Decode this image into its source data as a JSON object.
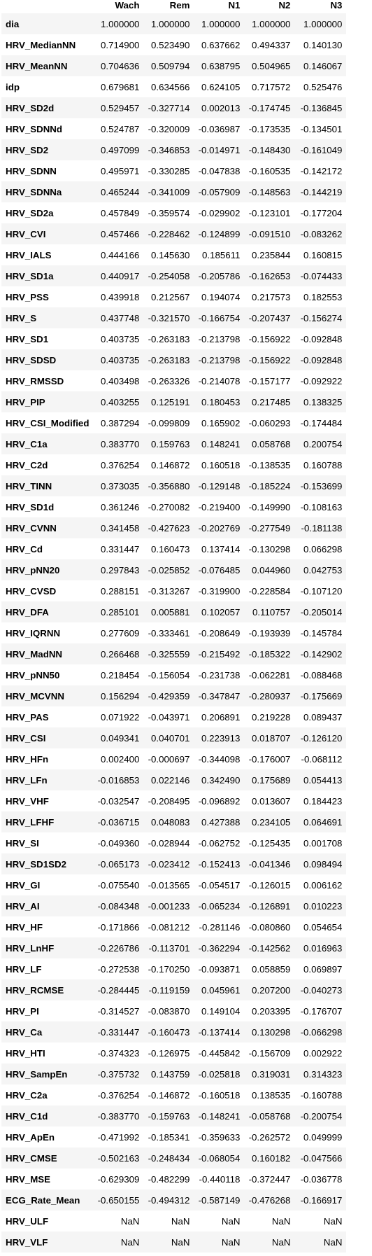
{
  "columns": [
    "Wach",
    "Rem",
    "N1",
    "N2",
    "N3"
  ],
  "rows": [
    {
      "index": "dia",
      "values": [
        "1.000000",
        "1.000000",
        "1.000000",
        "1.000000",
        "1.000000"
      ]
    },
    {
      "index": "HRV_MedianNN",
      "values": [
        "0.714900",
        "0.523490",
        "0.637662",
        "0.494337",
        "0.140130"
      ]
    },
    {
      "index": "HRV_MeanNN",
      "values": [
        "0.704636",
        "0.509794",
        "0.638795",
        "0.504965",
        "0.146067"
      ]
    },
    {
      "index": "idp",
      "values": [
        "0.679681",
        "0.634566",
        "0.624105",
        "0.717572",
        "0.525476"
      ]
    },
    {
      "index": "HRV_SD2d",
      "values": [
        "0.529457",
        "-0.327714",
        "0.002013",
        "-0.174745",
        "-0.136845"
      ]
    },
    {
      "index": "HRV_SDNNd",
      "values": [
        "0.524787",
        "-0.320009",
        "-0.036987",
        "-0.173535",
        "-0.134501"
      ]
    },
    {
      "index": "HRV_SD2",
      "values": [
        "0.497099",
        "-0.346853",
        "-0.014971",
        "-0.148430",
        "-0.161049"
      ]
    },
    {
      "index": "HRV_SDNN",
      "values": [
        "0.495971",
        "-0.330285",
        "-0.047838",
        "-0.160535",
        "-0.142172"
      ]
    },
    {
      "index": "HRV_SDNNa",
      "values": [
        "0.465244",
        "-0.341009",
        "-0.057909",
        "-0.148563",
        "-0.144219"
      ]
    },
    {
      "index": "HRV_SD2a",
      "values": [
        "0.457849",
        "-0.359574",
        "-0.029902",
        "-0.123101",
        "-0.177204"
      ]
    },
    {
      "index": "HRV_CVI",
      "values": [
        "0.457466",
        "-0.228462",
        "-0.124899",
        "-0.091510",
        "-0.083262"
      ]
    },
    {
      "index": "HRV_IALS",
      "values": [
        "0.444166",
        "0.145630",
        "0.185611",
        "0.235844",
        "0.160815"
      ]
    },
    {
      "index": "HRV_SD1a",
      "values": [
        "0.440917",
        "-0.254058",
        "-0.205786",
        "-0.162653",
        "-0.074433"
      ]
    },
    {
      "index": "HRV_PSS",
      "values": [
        "0.439918",
        "0.212567",
        "0.194074",
        "0.217573",
        "0.182553"
      ]
    },
    {
      "index": "HRV_S",
      "values": [
        "0.437748",
        "-0.321570",
        "-0.166754",
        "-0.207437",
        "-0.156274"
      ]
    },
    {
      "index": "HRV_SD1",
      "values": [
        "0.403735",
        "-0.263183",
        "-0.213798",
        "-0.156922",
        "-0.092848"
      ]
    },
    {
      "index": "HRV_SDSD",
      "values": [
        "0.403735",
        "-0.263183",
        "-0.213798",
        "-0.156922",
        "-0.092848"
      ]
    },
    {
      "index": "HRV_RMSSD",
      "values": [
        "0.403498",
        "-0.263326",
        "-0.214078",
        "-0.157177",
        "-0.092922"
      ]
    },
    {
      "index": "HRV_PIP",
      "values": [
        "0.403255",
        "0.125191",
        "0.180453",
        "0.217485",
        "0.138325"
      ]
    },
    {
      "index": "HRV_CSI_Modified",
      "values": [
        "0.387294",
        "-0.099809",
        "0.165902",
        "-0.060293",
        "-0.174484"
      ]
    },
    {
      "index": "HRV_C1a",
      "values": [
        "0.383770",
        "0.159763",
        "0.148241",
        "0.058768",
        "0.200754"
      ]
    },
    {
      "index": "HRV_C2d",
      "values": [
        "0.376254",
        "0.146872",
        "0.160518",
        "-0.138535",
        "0.160788"
      ]
    },
    {
      "index": "HRV_TINN",
      "values": [
        "0.373035",
        "-0.356880",
        "-0.129148",
        "-0.185224",
        "-0.153699"
      ]
    },
    {
      "index": "HRV_SD1d",
      "values": [
        "0.361246",
        "-0.270082",
        "-0.219400",
        "-0.149990",
        "-0.108163"
      ]
    },
    {
      "index": "HRV_CVNN",
      "values": [
        "0.341458",
        "-0.427623",
        "-0.202769",
        "-0.277549",
        "-0.181138"
      ]
    },
    {
      "index": "HRV_Cd",
      "values": [
        "0.331447",
        "0.160473",
        "0.137414",
        "-0.130298",
        "0.066298"
      ]
    },
    {
      "index": "HRV_pNN20",
      "values": [
        "0.297843",
        "-0.025852",
        "-0.076485",
        "0.044960",
        "0.042753"
      ]
    },
    {
      "index": "HRV_CVSD",
      "values": [
        "0.288151",
        "-0.313267",
        "-0.319900",
        "-0.228584",
        "-0.107120"
      ]
    },
    {
      "index": "HRV_DFA",
      "values": [
        "0.285101",
        "0.005881",
        "0.102057",
        "0.110757",
        "-0.205014"
      ]
    },
    {
      "index": "HRV_IQRNN",
      "values": [
        "0.277609",
        "-0.333461",
        "-0.208649",
        "-0.193939",
        "-0.145784"
      ]
    },
    {
      "index": "HRV_MadNN",
      "values": [
        "0.266468",
        "-0.325559",
        "-0.215492",
        "-0.185322",
        "-0.142902"
      ]
    },
    {
      "index": "HRV_pNN50",
      "values": [
        "0.218454",
        "-0.156054",
        "-0.231738",
        "-0.062281",
        "-0.088468"
      ]
    },
    {
      "index": "HRV_MCVNN",
      "values": [
        "0.156294",
        "-0.429359",
        "-0.347847",
        "-0.280937",
        "-0.175669"
      ]
    },
    {
      "index": "HRV_PAS",
      "values": [
        "0.071922",
        "-0.043971",
        "0.206891",
        "0.219228",
        "0.089437"
      ]
    },
    {
      "index": "HRV_CSI",
      "values": [
        "0.049341",
        "0.040701",
        "0.223913",
        "0.018707",
        "-0.126120"
      ]
    },
    {
      "index": "HRV_HFn",
      "values": [
        "0.002400",
        "-0.000697",
        "-0.344098",
        "-0.176007",
        "-0.068112"
      ]
    },
    {
      "index": "HRV_LFn",
      "values": [
        "-0.016853",
        "0.022146",
        "0.342490",
        "0.175689",
        "0.054413"
      ]
    },
    {
      "index": "HRV_VHF",
      "values": [
        "-0.032547",
        "-0.208495",
        "-0.096892",
        "0.013607",
        "0.184423"
      ]
    },
    {
      "index": "HRV_LFHF",
      "values": [
        "-0.036715",
        "0.048083",
        "0.427388",
        "0.234105",
        "0.064691"
      ]
    },
    {
      "index": "HRV_SI",
      "values": [
        "-0.049360",
        "-0.028944",
        "-0.062752",
        "-0.125435",
        "0.001708"
      ]
    },
    {
      "index": "HRV_SD1SD2",
      "values": [
        "-0.065173",
        "-0.023412",
        "-0.152413",
        "-0.041346",
        "0.098494"
      ]
    },
    {
      "index": "HRV_GI",
      "values": [
        "-0.075540",
        "-0.013565",
        "-0.054517",
        "-0.126015",
        "0.006162"
      ]
    },
    {
      "index": "HRV_AI",
      "values": [
        "-0.084348",
        "-0.001233",
        "-0.065234",
        "-0.126891",
        "0.010223"
      ]
    },
    {
      "index": "HRV_HF",
      "values": [
        "-0.171866",
        "-0.081212",
        "-0.281146",
        "-0.080860",
        "0.054654"
      ]
    },
    {
      "index": "HRV_LnHF",
      "values": [
        "-0.226786",
        "-0.113701",
        "-0.362294",
        "-0.142562",
        "0.016963"
      ]
    },
    {
      "index": "HRV_LF",
      "values": [
        "-0.272538",
        "-0.170250",
        "-0.093871",
        "0.058859",
        "0.069897"
      ]
    },
    {
      "index": "HRV_RCMSE",
      "values": [
        "-0.284445",
        "-0.119159",
        "0.045961",
        "0.207200",
        "-0.040273"
      ]
    },
    {
      "index": "HRV_PI",
      "values": [
        "-0.314527",
        "-0.083870",
        "0.149104",
        "0.203395",
        "-0.176707"
      ]
    },
    {
      "index": "HRV_Ca",
      "values": [
        "-0.331447",
        "-0.160473",
        "-0.137414",
        "0.130298",
        "-0.066298"
      ]
    },
    {
      "index": "HRV_HTI",
      "values": [
        "-0.374323",
        "-0.126975",
        "-0.445842",
        "-0.156709",
        "0.002922"
      ]
    },
    {
      "index": "HRV_SampEn",
      "values": [
        "-0.375732",
        "0.143759",
        "-0.025818",
        "0.319031",
        "0.314323"
      ]
    },
    {
      "index": "HRV_C2a",
      "values": [
        "-0.376254",
        "-0.146872",
        "-0.160518",
        "0.138535",
        "-0.160788"
      ]
    },
    {
      "index": "HRV_C1d",
      "values": [
        "-0.383770",
        "-0.159763",
        "-0.148241",
        "-0.058768",
        "-0.200754"
      ]
    },
    {
      "index": "HRV_ApEn",
      "values": [
        "-0.471992",
        "-0.185341",
        "-0.359633",
        "-0.262572",
        "0.049999"
      ]
    },
    {
      "index": "HRV_CMSE",
      "values": [
        "-0.502163",
        "-0.248434",
        "-0.068054",
        "0.160182",
        "-0.047566"
      ]
    },
    {
      "index": "HRV_MSE",
      "values": [
        "-0.629309",
        "-0.482299",
        "-0.440118",
        "-0.372447",
        "-0.036778"
      ]
    },
    {
      "index": "ECG_Rate_Mean",
      "values": [
        "-0.650155",
        "-0.494312",
        "-0.587149",
        "-0.476268",
        "-0.166917"
      ]
    },
    {
      "index": "HRV_ULF",
      "values": [
        "NaN",
        "NaN",
        "NaN",
        "NaN",
        "NaN"
      ]
    },
    {
      "index": "HRV_VLF",
      "values": [
        "NaN",
        "NaN",
        "NaN",
        "NaN",
        "NaN"
      ]
    }
  ]
}
